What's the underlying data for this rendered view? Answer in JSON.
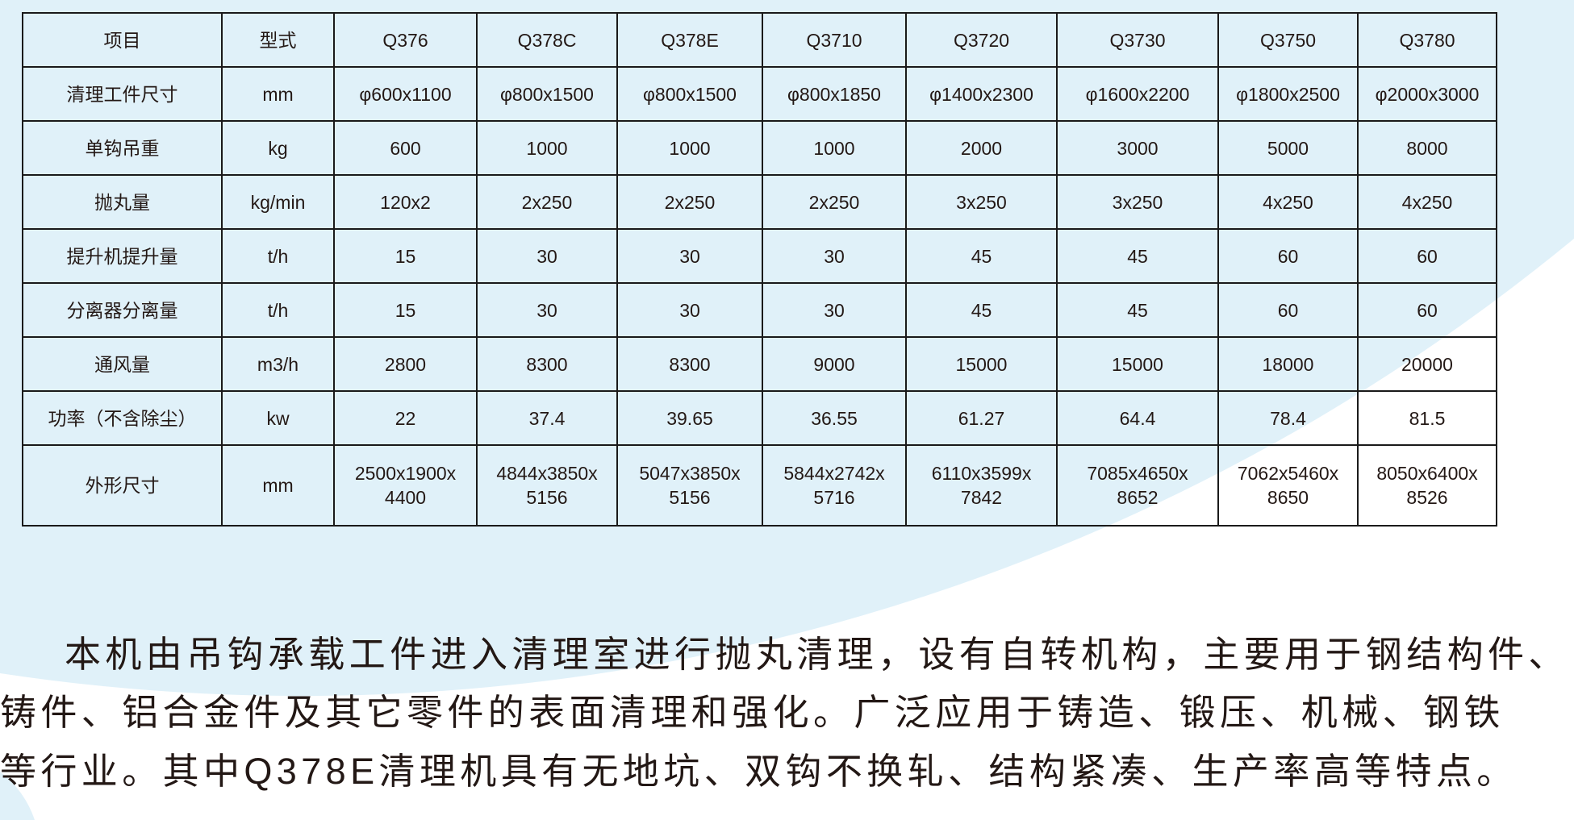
{
  "colors": {
    "background_blue": "#e0f1f9",
    "text": "#231815",
    "border": "#1a1a1a"
  },
  "table": {
    "header": [
      "项目",
      "型式",
      "Q376",
      "Q378C",
      "Q378E",
      "Q3710",
      "Q3720",
      "Q3730",
      "Q3750",
      "Q3780"
    ],
    "rows": [
      [
        "清理工件尺寸",
        "mm",
        "φ600x1100",
        "φ800x1500",
        "φ800x1500",
        "φ800x1850",
        "φ1400x2300",
        "φ1600x2200",
        "φ1800x2500",
        "φ2000x3000"
      ],
      [
        "单钩吊重",
        "kg",
        "600",
        "1000",
        "1000",
        "1000",
        "2000",
        "3000",
        "5000",
        "8000"
      ],
      [
        "抛丸量",
        "kg/min",
        "120x2",
        "2x250",
        "2x250",
        "2x250",
        "3x250",
        "3x250",
        "4x250",
        "4x250"
      ],
      [
        "提升机提升量",
        "t/h",
        "15",
        "30",
        "30",
        "30",
        "45",
        "45",
        "60",
        "60"
      ],
      [
        "分离器分离量",
        "t/h",
        "15",
        "30",
        "30",
        "30",
        "45",
        "45",
        "60",
        "60"
      ],
      [
        "通风量",
        "m3/h",
        "2800",
        "8300",
        "8300",
        "9000",
        "15000",
        "15000",
        "18000",
        "20000"
      ],
      [
        "功率（不含除尘）",
        "kw",
        "22",
        "37.4",
        "39.65",
        "36.55",
        "61.27",
        "64.4",
        "78.4",
        "81.5"
      ],
      [
        "外形尺寸",
        "mm",
        "2500x1900x 4400",
        "4844x3850x 5156",
        "5047x3850x 5156",
        "5844x2742x 5716",
        "6110x3599x 7842",
        "7085x4650x 8652",
        "7062x5460x 8650",
        "8050x6400x 8526"
      ]
    ]
  },
  "description": {
    "lines": [
      "本机由吊钩承载工件进入清理室进行抛丸清理，设有自转机构，主要用于钢结构件、",
      "铸件、铝合金件及其它零件的表面清理和强化。广泛应用于铸造、锻压、机械、钢铁",
      "等行业。其中Q378E清理机具有无地坑、双钩不换轧、结构紧凑、生产率高等特点。"
    ]
  }
}
